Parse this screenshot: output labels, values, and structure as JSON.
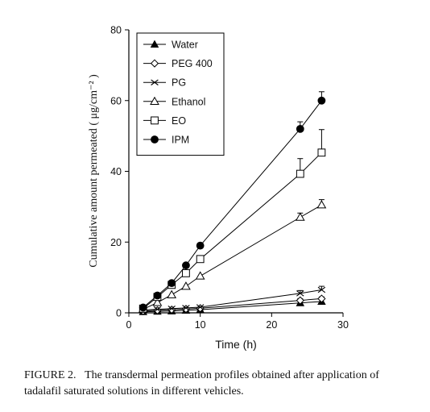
{
  "chart_data": {
    "type": "line",
    "xlabel": "Time (h)",
    "ylabel": "Cumulative amount permeated ( μg/cm⁻² )",
    "xlim": [
      0,
      30
    ],
    "ylim": [
      0,
      80
    ],
    "xticks": [
      0,
      10,
      20,
      30
    ],
    "yticks": [
      0,
      20,
      40,
      60,
      80
    ],
    "grid": false,
    "legend_position": "top-left",
    "series": [
      {
        "name": "Water",
        "marker": "filled-triangle",
        "x": [
          2,
          4,
          6,
          8,
          10,
          24,
          27
        ],
        "y": [
          0.3,
          0.4,
          0.5,
          0.7,
          0.9,
          2.8,
          3.2
        ],
        "err": [
          0,
          0,
          0,
          0,
          0,
          0.5,
          0.5
        ]
      },
      {
        "name": "PEG 400",
        "marker": "diamond",
        "x": [
          2,
          4,
          6,
          8,
          10,
          24,
          27
        ],
        "y": [
          0.5,
          0.7,
          0.9,
          1.1,
          1.3,
          3.5,
          4.0
        ],
        "err": [
          0,
          0,
          0,
          0,
          0,
          0.5,
          0.5
        ]
      },
      {
        "name": "PG",
        "marker": "x",
        "x": [
          2,
          4,
          6,
          8,
          10,
          24,
          27
        ],
        "y": [
          0.8,
          1.0,
          1.2,
          1.4,
          1.6,
          5.5,
          6.5
        ],
        "err": [
          0,
          0,
          0,
          0,
          0,
          0.8,
          1.0
        ]
      },
      {
        "name": "Ethanol",
        "marker": "open-triangle",
        "x": [
          2,
          4,
          6,
          8,
          10,
          24,
          27
        ],
        "y": [
          1.0,
          2.9,
          5.1,
          7.5,
          10.4,
          27.0,
          30.5
        ],
        "err": [
          0,
          0,
          0,
          0,
          0,
          1.2,
          1.5
        ]
      },
      {
        "name": "EO",
        "marker": "open-square",
        "x": [
          2,
          4,
          6,
          8,
          10,
          24,
          27
        ],
        "y": [
          1.2,
          4.5,
          7.9,
          11.2,
          15.2,
          39.3,
          45.3
        ],
        "err": [
          0,
          0,
          0,
          0,
          0,
          4.3,
          6.5
        ]
      },
      {
        "name": "IPM",
        "marker": "filled-circle",
        "x": [
          2,
          4,
          6,
          8,
          10,
          24,
          27
        ],
        "y": [
          1.5,
          4.9,
          8.4,
          13.4,
          19.0,
          52.0,
          60.0
        ],
        "err": [
          0,
          0,
          0,
          0,
          0,
          2.0,
          2.5
        ]
      }
    ]
  },
  "caption": {
    "label": "FIGURE 2.",
    "text": "The transdermal permeation profiles obtained after application of tadalafil saturated solutions in different vehicles."
  }
}
